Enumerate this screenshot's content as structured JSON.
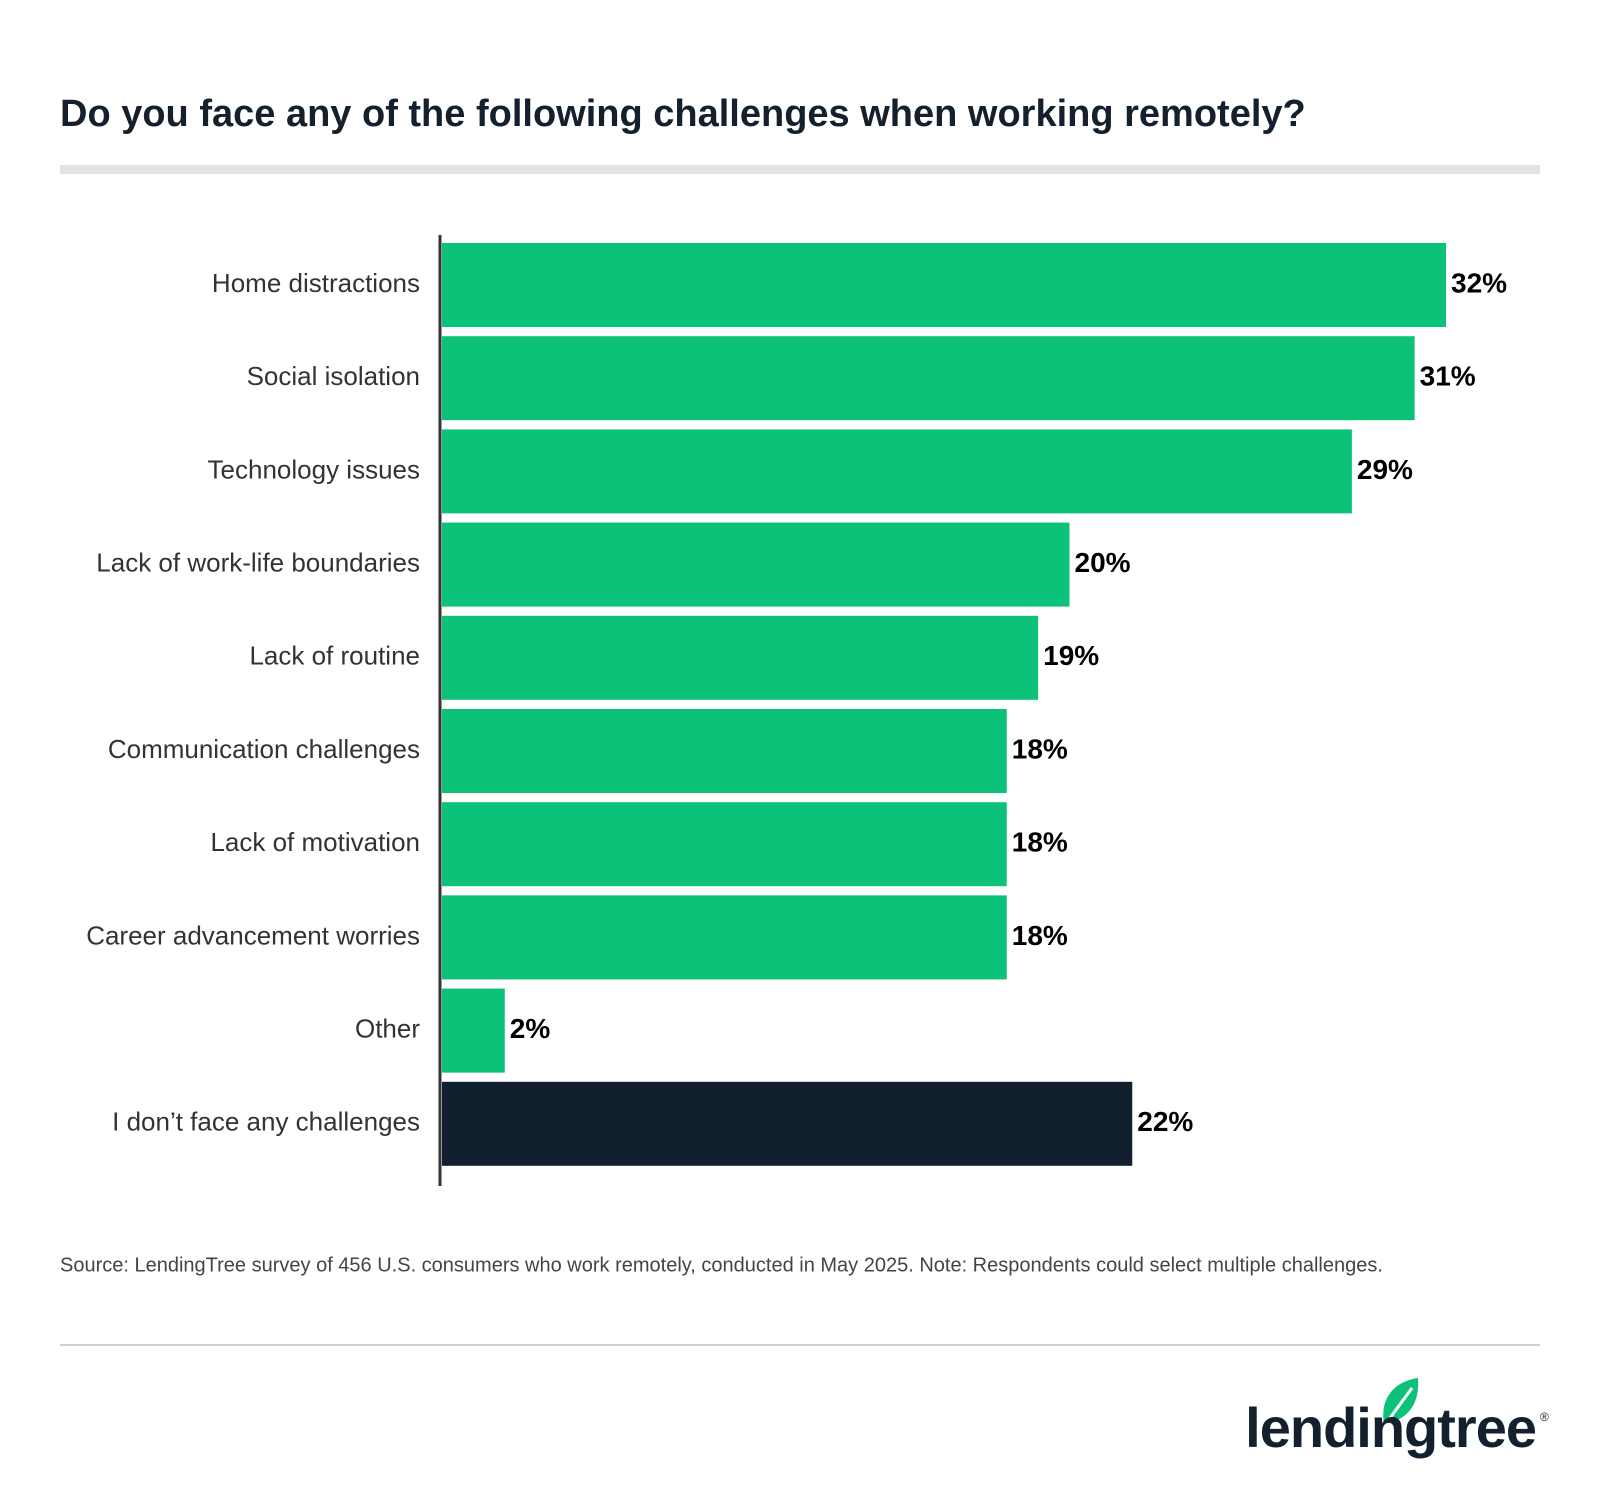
{
  "chart_data": {
    "type": "bar",
    "orientation": "horizontal",
    "title": "Do you face any of the following challenges when working remotely?",
    "categories": [
      "Home distractions",
      "Social isolation",
      "Technology issues",
      "Lack of work-life boundaries",
      "Lack of routine",
      "Communication challenges",
      "Lack of motivation",
      "Career advancement worries",
      "Other",
      "I don’t face any challenges"
    ],
    "values": [
      32,
      31,
      29,
      20,
      19,
      18,
      18,
      18,
      2,
      22
    ],
    "value_labels": [
      "32%",
      "31%",
      "29%",
      "20%",
      "19%",
      "18%",
      "18%",
      "18%",
      "2%",
      "22%"
    ],
    "colors": [
      "#0cc178",
      "#0cc178",
      "#0cc178",
      "#0cc178",
      "#0cc178",
      "#0cc178",
      "#0cc178",
      "#0cc178",
      "#0cc178",
      "#121f2f"
    ],
    "source": "Source: LendingTree survey of 456 U.S. consumers who work remotely, conducted in May 2025. Note: Respondents could select multiple challenges.",
    "logo": {
      "text": "lendingtree",
      "mark": "®"
    }
  }
}
